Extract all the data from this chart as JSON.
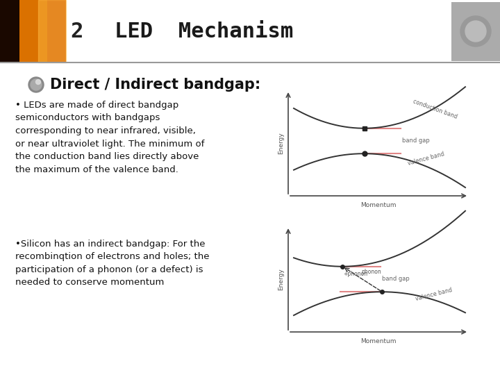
{
  "background_color": "#ffffff",
  "title": "LED  Mechanism",
  "title_color": "#1a1a1a",
  "title_fontsize": 22,
  "slide_number": "2",
  "section_title": "Direct / Indirect bandgap:",
  "section_title_fontsize": 15,
  "bullet1_text": "• LEDs are made of direct bandgap\nsemiconductors with bandgaps\ncorresponding to near infrared, visible,\nor near ultraviolet light. The minimum of\nthe conduction band lies directly above\nthe maximum of the valence band.",
  "bullet2_text": "•Silicon has an indirect bandgap: For the\nrecombinqtion of electrons and holes; the\nparticipation of a phonon (or a defect) is\nneeded to conserve momentum",
  "text_fontsize": 9.5,
  "text_color": "#111111",
  "band_curve_color": "#333333",
  "band_gap_line_color": "#e08080",
  "dot_color": "#222222",
  "label_color": "#555555"
}
